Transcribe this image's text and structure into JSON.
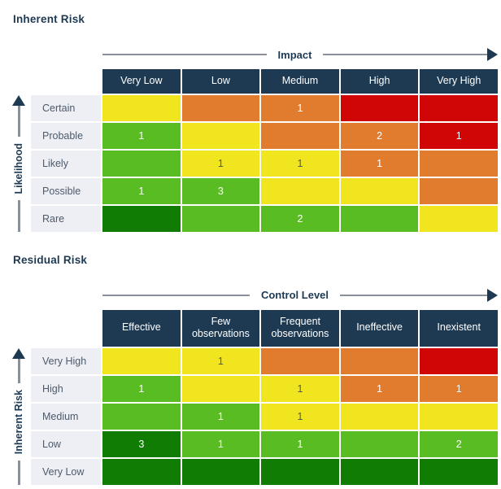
{
  "palette": {
    "page_bg": "#ffffff",
    "navy": "#1e3a53",
    "axis_line": "#8a909a",
    "label_bg": "#edeff4",
    "label_text": "#4d5a6b",
    "cell_text_light": "#ffffff",
    "cell_text_dark": "#4d5a6b",
    "yellow": "#f0e51e",
    "orange": "#e17c2e",
    "red": "#d00606",
    "green": "#5abc23",
    "darkgreen": "#107c04"
  },
  "chart_data": [
    {
      "type": "heatmap",
      "title": "Inherent Risk",
      "x_axis_label": "Impact",
      "y_axis_label": "Likelihood",
      "columns": [
        "Very Low",
        "Low",
        "Medium",
        "High",
        "Very High"
      ],
      "rows": [
        "Certain",
        "Probable",
        "Likely",
        "Possible",
        "Rare"
      ],
      "cells": [
        [
          {
            "color": "yellow",
            "value": null
          },
          {
            "color": "orange",
            "value": null
          },
          {
            "color": "orange",
            "value": 1
          },
          {
            "color": "red",
            "value": null
          },
          {
            "color": "red",
            "value": null
          }
        ],
        [
          {
            "color": "green",
            "value": 1
          },
          {
            "color": "yellow",
            "value": null
          },
          {
            "color": "orange",
            "value": null
          },
          {
            "color": "orange",
            "value": 2
          },
          {
            "color": "red",
            "value": 1
          }
        ],
        [
          {
            "color": "green",
            "value": null
          },
          {
            "color": "yellow",
            "value": 1
          },
          {
            "color": "yellow",
            "value": 1
          },
          {
            "color": "orange",
            "value": 1
          },
          {
            "color": "orange",
            "value": null
          }
        ],
        [
          {
            "color": "green",
            "value": 1
          },
          {
            "color": "green",
            "value": 3
          },
          {
            "color": "yellow",
            "value": null
          },
          {
            "color": "yellow",
            "value": null
          },
          {
            "color": "orange",
            "value": null
          }
        ],
        [
          {
            "color": "darkgreen",
            "value": null
          },
          {
            "color": "green",
            "value": null
          },
          {
            "color": "green",
            "value": 2
          },
          {
            "color": "green",
            "value": null
          },
          {
            "color": "yellow",
            "value": null
          }
        ]
      ]
    },
    {
      "type": "heatmap",
      "title": "Residual Risk",
      "x_axis_label": "Control Level",
      "y_axis_label": "Inherent Risk",
      "columns": [
        "Effective",
        "Few observations",
        "Frequent observations",
        "Ineffective",
        "Inexistent"
      ],
      "rows": [
        "Very High",
        "High",
        "Medium",
        "Low",
        "Very Low"
      ],
      "cells": [
        [
          {
            "color": "yellow",
            "value": null
          },
          {
            "color": "yellow",
            "value": 1
          },
          {
            "color": "orange",
            "value": null
          },
          {
            "color": "orange",
            "value": null
          },
          {
            "color": "red",
            "value": null
          }
        ],
        [
          {
            "color": "green",
            "value": 1
          },
          {
            "color": "yellow",
            "value": null
          },
          {
            "color": "yellow",
            "value": 1
          },
          {
            "color": "orange",
            "value": 1
          },
          {
            "color": "orange",
            "value": 1
          }
        ],
        [
          {
            "color": "green",
            "value": null
          },
          {
            "color": "green",
            "value": 1
          },
          {
            "color": "yellow",
            "value": 1
          },
          {
            "color": "yellow",
            "value": null
          },
          {
            "color": "yellow",
            "value": null
          }
        ],
        [
          {
            "color": "darkgreen",
            "value": 3
          },
          {
            "color": "green",
            "value": 1
          },
          {
            "color": "green",
            "value": 1
          },
          {
            "color": "green",
            "value": null
          },
          {
            "color": "green",
            "value": 2
          }
        ],
        [
          {
            "color": "darkgreen",
            "value": null
          },
          {
            "color": "darkgreen",
            "value": null
          },
          {
            "color": "darkgreen",
            "value": null
          },
          {
            "color": "darkgreen",
            "value": null
          },
          {
            "color": "darkgreen",
            "value": null
          }
        ]
      ]
    }
  ]
}
